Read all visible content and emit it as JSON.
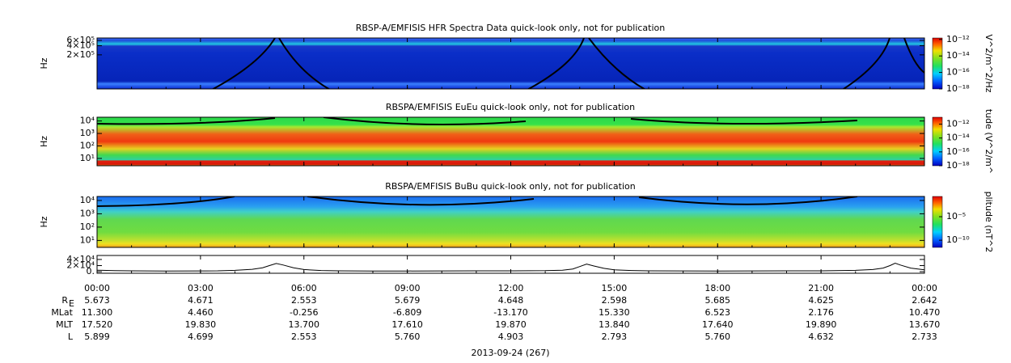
{
  "chart_data": [
    {
      "type": "spectrogram",
      "title": "RBSP-A/EMFISIS  HFR Spectra Data quick-look only, not for publication",
      "ylabel": "Hz",
      "log_y": true,
      "ylim": [
        15000,
        720000
      ],
      "yticks": [
        {
          "value": 600000,
          "label": "6×10⁵"
        },
        {
          "value": 400000,
          "label": "4×10⁵"
        },
        {
          "value": 200000,
          "label": "2×10⁵"
        }
      ],
      "colorbar": {
        "label": "V^2/m^2/Hz",
        "log": true,
        "clim": [
          1e-18,
          1.5e-12
        ],
        "ticks": [
          {
            "value": 1e-12,
            "label": "10⁻¹²"
          },
          {
            "value": 1e-14,
            "label": "10⁻¹⁴"
          },
          {
            "value": 1e-16,
            "label": "10⁻¹⁶"
          },
          {
            "value": 1e-18,
            "label": "10⁻¹⁸"
          }
        ]
      }
    },
    {
      "type": "spectrogram",
      "title": "RBSPA/EMFISIS  EuEu quick-look only, not for publication",
      "ylabel": "Hz",
      "log_y": true,
      "ylim": [
        2.6,
        20000
      ],
      "yticks": [
        {
          "value": 10000,
          "label": "10⁴"
        },
        {
          "value": 1000,
          "label": "10³"
        },
        {
          "value": 100,
          "label": "10²"
        },
        {
          "value": 10,
          "label": "10¹"
        }
      ],
      "colorbar": {
        "label": "tude (V^2/m^",
        "log": true,
        "clim": [
          1e-18,
          1e-11
        ],
        "ticks": [
          {
            "value": 1e-12,
            "label": "10⁻¹²"
          },
          {
            "value": 1e-14,
            "label": "10⁻¹⁴"
          },
          {
            "value": 1e-16,
            "label": "10⁻¹⁶"
          },
          {
            "value": 1e-18,
            "label": "10⁻¹⁸"
          }
        ]
      }
    },
    {
      "type": "spectrogram",
      "title": "RBSPA/EMFISIS  BuBu quick-look only, not for publication",
      "ylabel": "Hz",
      "log_y": true,
      "ylim": [
        3,
        20000
      ],
      "yticks": [
        {
          "value": 10000,
          "label": "10⁴"
        },
        {
          "value": 1000,
          "label": "10³"
        },
        {
          "value": 100,
          "label": "10²"
        },
        {
          "value": 10,
          "label": "10¹"
        }
      ],
      "colorbar": {
        "label": "plitude (nT^2",
        "log": true,
        "clim": [
          3e-12,
          0.2
        ],
        "ticks": [
          {
            "value": 1e-05,
            "label": "10⁻⁵"
          },
          {
            "value": 1e-10,
            "label": "10⁻¹⁰"
          }
        ]
      }
    },
    {
      "type": "line",
      "color": "#000000",
      "ylim": [
        -5000,
        53000
      ],
      "yticks": [
        {
          "value": 40000,
          "label": "4×10⁴"
        },
        {
          "value": 20000,
          "label": "2×10⁴"
        },
        {
          "value": 0,
          "label": "0."
        }
      ],
      "x": [
        0,
        0.5,
        1,
        2,
        3,
        3.5,
        4,
        4.5,
        4.8,
        5.0,
        5.2,
        5.4,
        5.7,
        6,
        6.5,
        7,
        8,
        9,
        10,
        11,
        12,
        13,
        13.5,
        13.8,
        14.0,
        14.2,
        14.4,
        14.7,
        15,
        15.5,
        16,
        17,
        18,
        19,
        20,
        21,
        22,
        22.5,
        22.8,
        23.0,
        23.15,
        23.3,
        23.6,
        24
      ],
      "values": [
        5000,
        3500,
        3000,
        2500,
        2600,
        3000,
        4500,
        8000,
        13000,
        20000,
        27000,
        22000,
        13000,
        7000,
        4000,
        3000,
        2500,
        2500,
        2600,
        2800,
        3000,
        3500,
        5000,
        9000,
        17000,
        25000,
        19000,
        11000,
        6000,
        4000,
        3000,
        2600,
        2500,
        2600,
        2800,
        3000,
        4500,
        7000,
        12000,
        20000,
        28000,
        22000,
        12000,
        6000
      ]
    }
  ],
  "time_axis": {
    "xlim": [
      0,
      24
    ],
    "ticks": [
      {
        "value": 0,
        "label": "00:00"
      },
      {
        "value": 3,
        "label": "03:00"
      },
      {
        "value": 6,
        "label": "06:00"
      },
      {
        "value": 9,
        "label": "09:00"
      },
      {
        "value": 12,
        "label": "12:00"
      },
      {
        "value": 15,
        "label": "15:00"
      },
      {
        "value": 18,
        "label": "18:00"
      },
      {
        "value": 21,
        "label": "21:00"
      },
      {
        "value": 24,
        "label": "00:00"
      }
    ]
  },
  "ephemeris": {
    "rows": [
      {
        "label": "R",
        "sub": "E",
        "values": [
          "5.673",
          "4.671",
          "2.553",
          "5.679",
          "4.648",
          "2.598",
          "5.685",
          "4.625",
          "2.642"
        ]
      },
      {
        "label": "MLat",
        "values": [
          "11.300",
          "4.460",
          "-0.256",
          "-6.809",
          "-13.170",
          "15.330",
          "6.523",
          "2.176",
          "10.470"
        ]
      },
      {
        "label": "MLT",
        "values": [
          "17.520",
          "19.830",
          "13.700",
          "17.610",
          "19.870",
          "13.840",
          "17.640",
          "19.890",
          "13.670"
        ]
      },
      {
        "label": "L",
        "values": [
          "5.899",
          "4.699",
          "2.553",
          "5.760",
          "4.903",
          "2.793",
          "5.760",
          "4.632",
          "2.733"
        ]
      }
    ]
  },
  "date_label": "2013-09-24 (267)"
}
